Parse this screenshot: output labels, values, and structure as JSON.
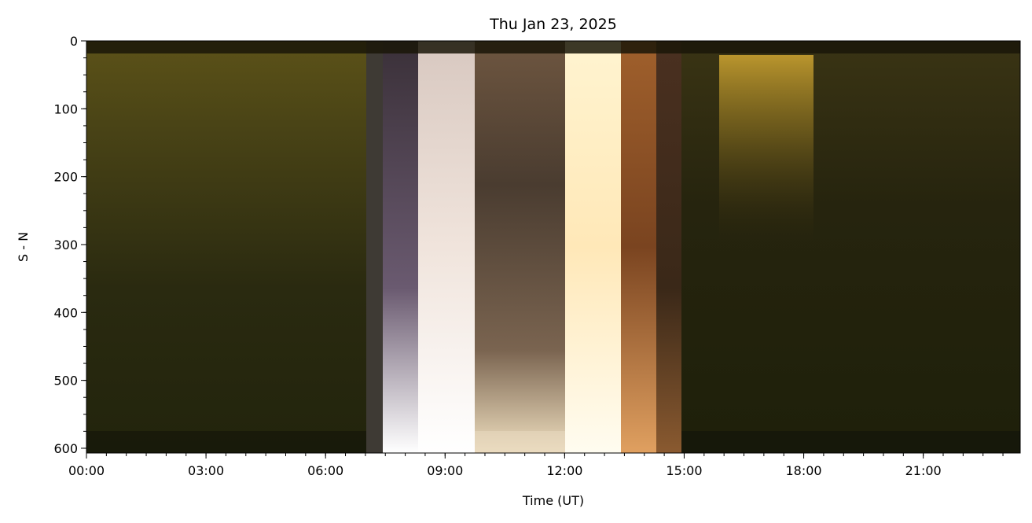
{
  "chart_data": {
    "type": "keogram",
    "title": "Thu Jan 23, 2025",
    "x_label": "Time (UT)",
    "y_label": "S - N",
    "xlim": [
      0,
      23.433
    ],
    "xticks": [
      {
        "value": 0,
        "label": "00:00"
      },
      {
        "value": 3,
        "label": "03:00"
      },
      {
        "value": 6,
        "label": "06:00"
      },
      {
        "value": 9,
        "label": "09:00"
      },
      {
        "value": 12,
        "label": "12:00"
      },
      {
        "value": 15,
        "label": "15:00"
      },
      {
        "value": 18,
        "label": "18:00"
      },
      {
        "value": 21,
        "label": "21:00"
      }
    ],
    "x_minor_step": 0.5,
    "ylim": [
      607,
      0
    ],
    "yticks": [
      0,
      100,
      200,
      300,
      400,
      500,
      600
    ],
    "y_minor_step": 25
  }
}
